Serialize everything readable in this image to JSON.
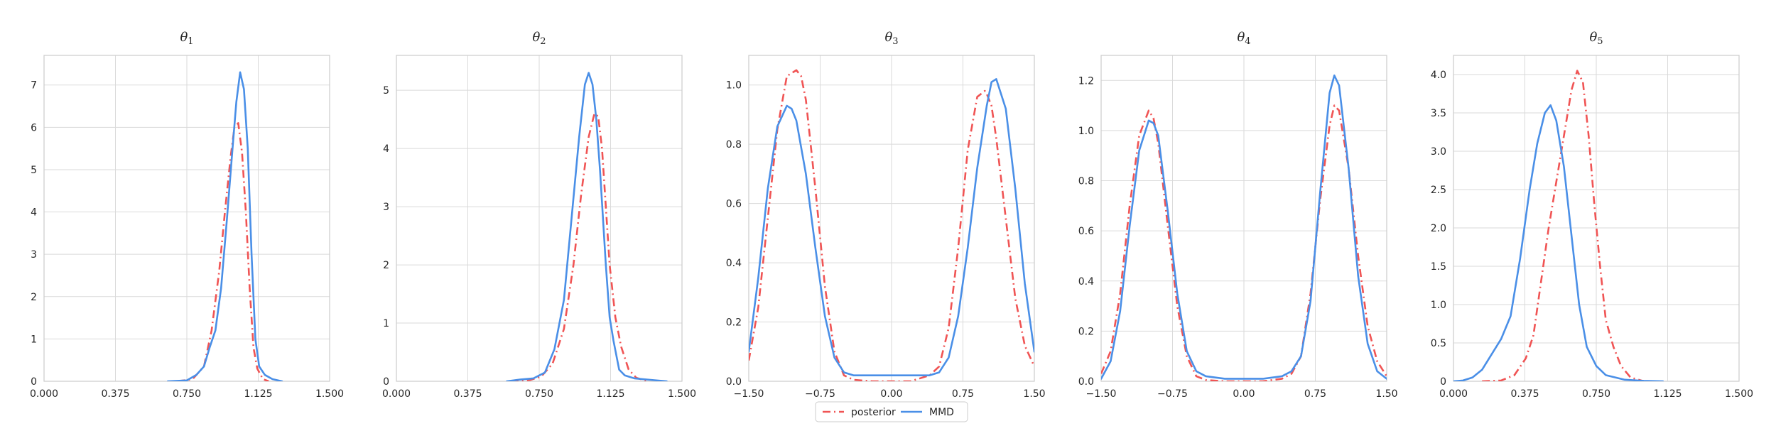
{
  "colors": {
    "posterior": "#F05454",
    "mmd": "#4A8FE7",
    "grid": "#DADADA",
    "frame": "#CCCCCC"
  },
  "legend": {
    "placement": "bottom-center",
    "entries": [
      "posterior",
      "MMD"
    ]
  },
  "chart_data": [
    {
      "type": "line",
      "title": "θ1",
      "title_base": "θ",
      "title_sub": "1",
      "xlim": [
        0.0,
        1.5
      ],
      "ylim": [
        0,
        7.7
      ],
      "xticks": [
        0.0,
        0.375,
        0.75,
        1.125,
        1.5
      ],
      "xtick_labels": [
        "0.000",
        "0.375",
        "0.750",
        "1.125",
        "1.500"
      ],
      "yticks": [
        0,
        1,
        2,
        3,
        4,
        5,
        6,
        7
      ],
      "ytick_labels": [
        "0",
        "1",
        "2",
        "3",
        "4",
        "5",
        "6",
        "7"
      ],
      "grid": true,
      "series": [
        {
          "name": "posterior",
          "style": "dashdot",
          "x": [
            0.7,
            0.78,
            0.84,
            0.88,
            0.92,
            0.95,
            0.98,
            1.0,
            1.02,
            1.04,
            1.06,
            1.08,
            1.1,
            1.12,
            1.15,
            1.18
          ],
          "y": [
            0.0,
            0.05,
            0.35,
            1.2,
            2.6,
            4.0,
            5.3,
            6.0,
            6.1,
            5.4,
            4.0,
            2.2,
            0.8,
            0.3,
            0.05,
            0.0
          ]
        },
        {
          "name": "MMD",
          "style": "solid",
          "x": [
            0.65,
            0.75,
            0.8,
            0.84,
            0.87,
            0.9,
            0.93,
            0.96,
            0.99,
            1.01,
            1.03,
            1.05,
            1.07,
            1.09,
            1.11,
            1.13,
            1.16,
            1.2,
            1.25
          ],
          "y": [
            0.0,
            0.02,
            0.15,
            0.35,
            0.8,
            1.2,
            2.2,
            3.8,
            5.5,
            6.6,
            7.3,
            6.9,
            5.5,
            3.0,
            1.0,
            0.35,
            0.15,
            0.05,
            0.0
          ]
        }
      ]
    },
    {
      "type": "line",
      "title": "θ2",
      "title_base": "θ",
      "title_sub": "2",
      "xlim": [
        0.0,
        1.5
      ],
      "ylim": [
        0,
        5.6
      ],
      "xticks": [
        0.0,
        0.375,
        0.75,
        1.125,
        1.5
      ],
      "xtick_labels": [
        "0.000",
        "0.375",
        "0.750",
        "1.125",
        "1.500"
      ],
      "yticks": [
        0,
        1,
        2,
        3,
        4,
        5
      ],
      "ytick_labels": [
        "0",
        "1",
        "2",
        "3",
        "4",
        "5"
      ],
      "grid": true,
      "series": [
        {
          "name": "posterior",
          "style": "dashdot",
          "x": [
            0.6,
            0.7,
            0.76,
            0.82,
            0.88,
            0.93,
            0.97,
            1.01,
            1.04,
            1.06,
            1.08,
            1.1,
            1.12,
            1.15,
            1.18,
            1.22,
            1.26,
            1.32
          ],
          "y": [
            0.0,
            0.02,
            0.08,
            0.3,
            0.9,
            2.0,
            3.2,
            4.2,
            4.6,
            4.55,
            4.0,
            3.0,
            2.0,
            1.1,
            0.6,
            0.2,
            0.06,
            0.0
          ]
        },
        {
          "name": "MMD",
          "style": "solid",
          "x": [
            0.58,
            0.65,
            0.72,
            0.78,
            0.83,
            0.88,
            0.92,
            0.96,
            0.99,
            1.01,
            1.03,
            1.05,
            1.07,
            1.1,
            1.12,
            1.14,
            1.17,
            1.2,
            1.25,
            1.35,
            1.42
          ],
          "y": [
            0.0,
            0.03,
            0.05,
            0.15,
            0.55,
            1.4,
            2.8,
            4.2,
            5.1,
            5.3,
            5.1,
            4.5,
            3.6,
            2.0,
            1.1,
            0.7,
            0.2,
            0.1,
            0.05,
            0.02,
            0.0
          ]
        }
      ]
    },
    {
      "type": "line",
      "title": "θ3",
      "title_base": "θ",
      "title_sub": "3",
      "xlim": [
        -1.5,
        1.5
      ],
      "ylim": [
        0,
        1.1
      ],
      "xticks": [
        -1.5,
        -0.75,
        0.0,
        0.75,
        1.5
      ],
      "xtick_labels": [
        "−1.50",
        "−0.75",
        "0.00",
        "0.75",
        "1.50"
      ],
      "yticks": [
        0,
        0.2,
        0.4,
        0.6,
        0.8,
        1.0
      ],
      "ytick_labels": [
        "0.0",
        "0.2",
        "0.4",
        "0.6",
        "0.8",
        "1.0"
      ],
      "grid": true,
      "series": [
        {
          "name": "posterior",
          "style": "dashdot",
          "x": [
            -1.5,
            -1.4,
            -1.3,
            -1.2,
            -1.1,
            -1.0,
            -0.95,
            -0.9,
            -0.8,
            -0.7,
            -0.6,
            -0.5,
            -0.4,
            -0.2,
            0.0,
            0.2,
            0.4,
            0.5,
            0.6,
            0.7,
            0.8,
            0.9,
            0.98,
            1.0,
            1.05,
            1.1,
            1.2,
            1.3,
            1.4,
            1.5
          ],
          "y": [
            0.07,
            0.25,
            0.55,
            0.85,
            1.03,
            1.05,
            1.03,
            0.95,
            0.65,
            0.32,
            0.1,
            0.02,
            0.005,
            0.0,
            0.0,
            0.0,
            0.02,
            0.05,
            0.18,
            0.45,
            0.78,
            0.96,
            0.98,
            0.97,
            0.93,
            0.82,
            0.55,
            0.28,
            0.12,
            0.05
          ]
        },
        {
          "name": "MMD",
          "style": "solid",
          "x": [
            -1.5,
            -1.4,
            -1.3,
            -1.2,
            -1.1,
            -1.05,
            -1.0,
            -0.9,
            -0.8,
            -0.7,
            -0.6,
            -0.5,
            -0.4,
            -0.2,
            0.0,
            0.2,
            0.4,
            0.5,
            0.6,
            0.7,
            0.8,
            0.9,
            1.0,
            1.05,
            1.1,
            1.2,
            1.3,
            1.4,
            1.5
          ],
          "y": [
            0.1,
            0.35,
            0.65,
            0.86,
            0.93,
            0.92,
            0.88,
            0.7,
            0.45,
            0.22,
            0.08,
            0.03,
            0.02,
            0.02,
            0.02,
            0.02,
            0.02,
            0.03,
            0.08,
            0.22,
            0.45,
            0.72,
            0.93,
            1.01,
            1.02,
            0.92,
            0.65,
            0.33,
            0.1
          ]
        }
      ]
    },
    {
      "type": "line",
      "title": "θ4",
      "title_base": "θ",
      "title_sub": "4",
      "xlim": [
        -1.5,
        1.5
      ],
      "ylim": [
        0,
        1.3
      ],
      "xticks": [
        -1.5,
        -0.75,
        0.0,
        0.75,
        1.5
      ],
      "xtick_labels": [
        "−1.50",
        "−0.75",
        "0.00",
        "0.75",
        "1.50"
      ],
      "yticks": [
        0,
        0.2,
        0.4,
        0.6,
        0.8,
        1.0,
        1.2
      ],
      "ytick_labels": [
        "0.0",
        "0.2",
        "0.4",
        "0.6",
        "0.8",
        "1.0",
        "1.2"
      ],
      "grid": true,
      "series": [
        {
          "name": "posterior",
          "style": "dashdot",
          "x": [
            -1.5,
            -1.4,
            -1.3,
            -1.2,
            -1.1,
            -1.0,
            -0.95,
            -0.9,
            -0.8,
            -0.7,
            -0.6,
            -0.5,
            -0.4,
            -0.2,
            0.0,
            0.2,
            0.4,
            0.5,
            0.6,
            0.7,
            0.8,
            0.9,
            0.95,
            1.0,
            1.1,
            1.2,
            1.3,
            1.4,
            1.5
          ],
          "y": [
            0.03,
            0.12,
            0.35,
            0.7,
            0.98,
            1.08,
            1.05,
            0.95,
            0.62,
            0.3,
            0.1,
            0.02,
            0.005,
            0.0,
            0.0,
            0.0,
            0.01,
            0.03,
            0.1,
            0.35,
            0.72,
            1.02,
            1.1,
            1.08,
            0.85,
            0.5,
            0.22,
            0.08,
            0.02
          ]
        },
        {
          "name": "MMD",
          "style": "solid",
          "x": [
            -1.5,
            -1.4,
            -1.3,
            -1.2,
            -1.1,
            -1.0,
            -0.95,
            -0.9,
            -0.8,
            -0.7,
            -0.6,
            -0.5,
            -0.4,
            -0.2,
            0.0,
            0.2,
            0.4,
            0.5,
            0.6,
            0.7,
            0.8,
            0.9,
            0.95,
            1.0,
            1.1,
            1.2,
            1.3,
            1.4,
            1.5
          ],
          "y": [
            0.01,
            0.08,
            0.28,
            0.62,
            0.92,
            1.04,
            1.03,
            0.98,
            0.68,
            0.35,
            0.12,
            0.04,
            0.02,
            0.01,
            0.01,
            0.01,
            0.02,
            0.04,
            0.1,
            0.32,
            0.75,
            1.15,
            1.22,
            1.18,
            0.85,
            0.42,
            0.15,
            0.04,
            0.01
          ]
        }
      ]
    },
    {
      "type": "line",
      "title": "θ5",
      "title_base": "θ",
      "title_sub": "5",
      "xlim": [
        0.0,
        1.5
      ],
      "ylim": [
        0,
        4.25
      ],
      "xticks": [
        0.0,
        0.375,
        0.75,
        1.125,
        1.5
      ],
      "xtick_labels": [
        "0.000",
        "0.375",
        "0.750",
        "1.125",
        "1.500"
      ],
      "yticks": [
        0,
        0.5,
        1.0,
        1.5,
        2.0,
        2.5,
        3.0,
        3.5,
        4.0
      ],
      "ytick_labels": [
        "0",
        "0.5",
        "1.0",
        "1.5",
        "2.0",
        "2.5",
        "3.0",
        "3.5",
        "4.0"
      ],
      "grid": true,
      "series": [
        {
          "name": "posterior",
          "style": "dashdot",
          "x": [
            0.15,
            0.25,
            0.32,
            0.38,
            0.42,
            0.46,
            0.5,
            0.54,
            0.58,
            0.62,
            0.65,
            0.68,
            0.71,
            0.74,
            0.77,
            0.8,
            0.84,
            0.88,
            0.93,
            1.0
          ],
          "y": [
            0.0,
            0.01,
            0.08,
            0.3,
            0.6,
            1.3,
            2.0,
            2.6,
            3.2,
            3.8,
            4.05,
            3.9,
            3.2,
            2.3,
            1.5,
            0.8,
            0.45,
            0.2,
            0.05,
            0.0
          ]
        },
        {
          "name": "MMD",
          "style": "solid",
          "x": [
            0.0,
            0.05,
            0.1,
            0.15,
            0.2,
            0.25,
            0.3,
            0.35,
            0.4,
            0.44,
            0.48,
            0.51,
            0.54,
            0.58,
            0.62,
            0.66,
            0.7,
            0.75,
            0.8,
            0.9,
            1.0,
            1.1
          ],
          "y": [
            0.0,
            0.01,
            0.05,
            0.15,
            0.35,
            0.55,
            0.85,
            1.6,
            2.5,
            3.1,
            3.5,
            3.6,
            3.4,
            2.8,
            1.9,
            1.0,
            0.45,
            0.2,
            0.08,
            0.02,
            0.005,
            0.0
          ]
        }
      ]
    }
  ]
}
